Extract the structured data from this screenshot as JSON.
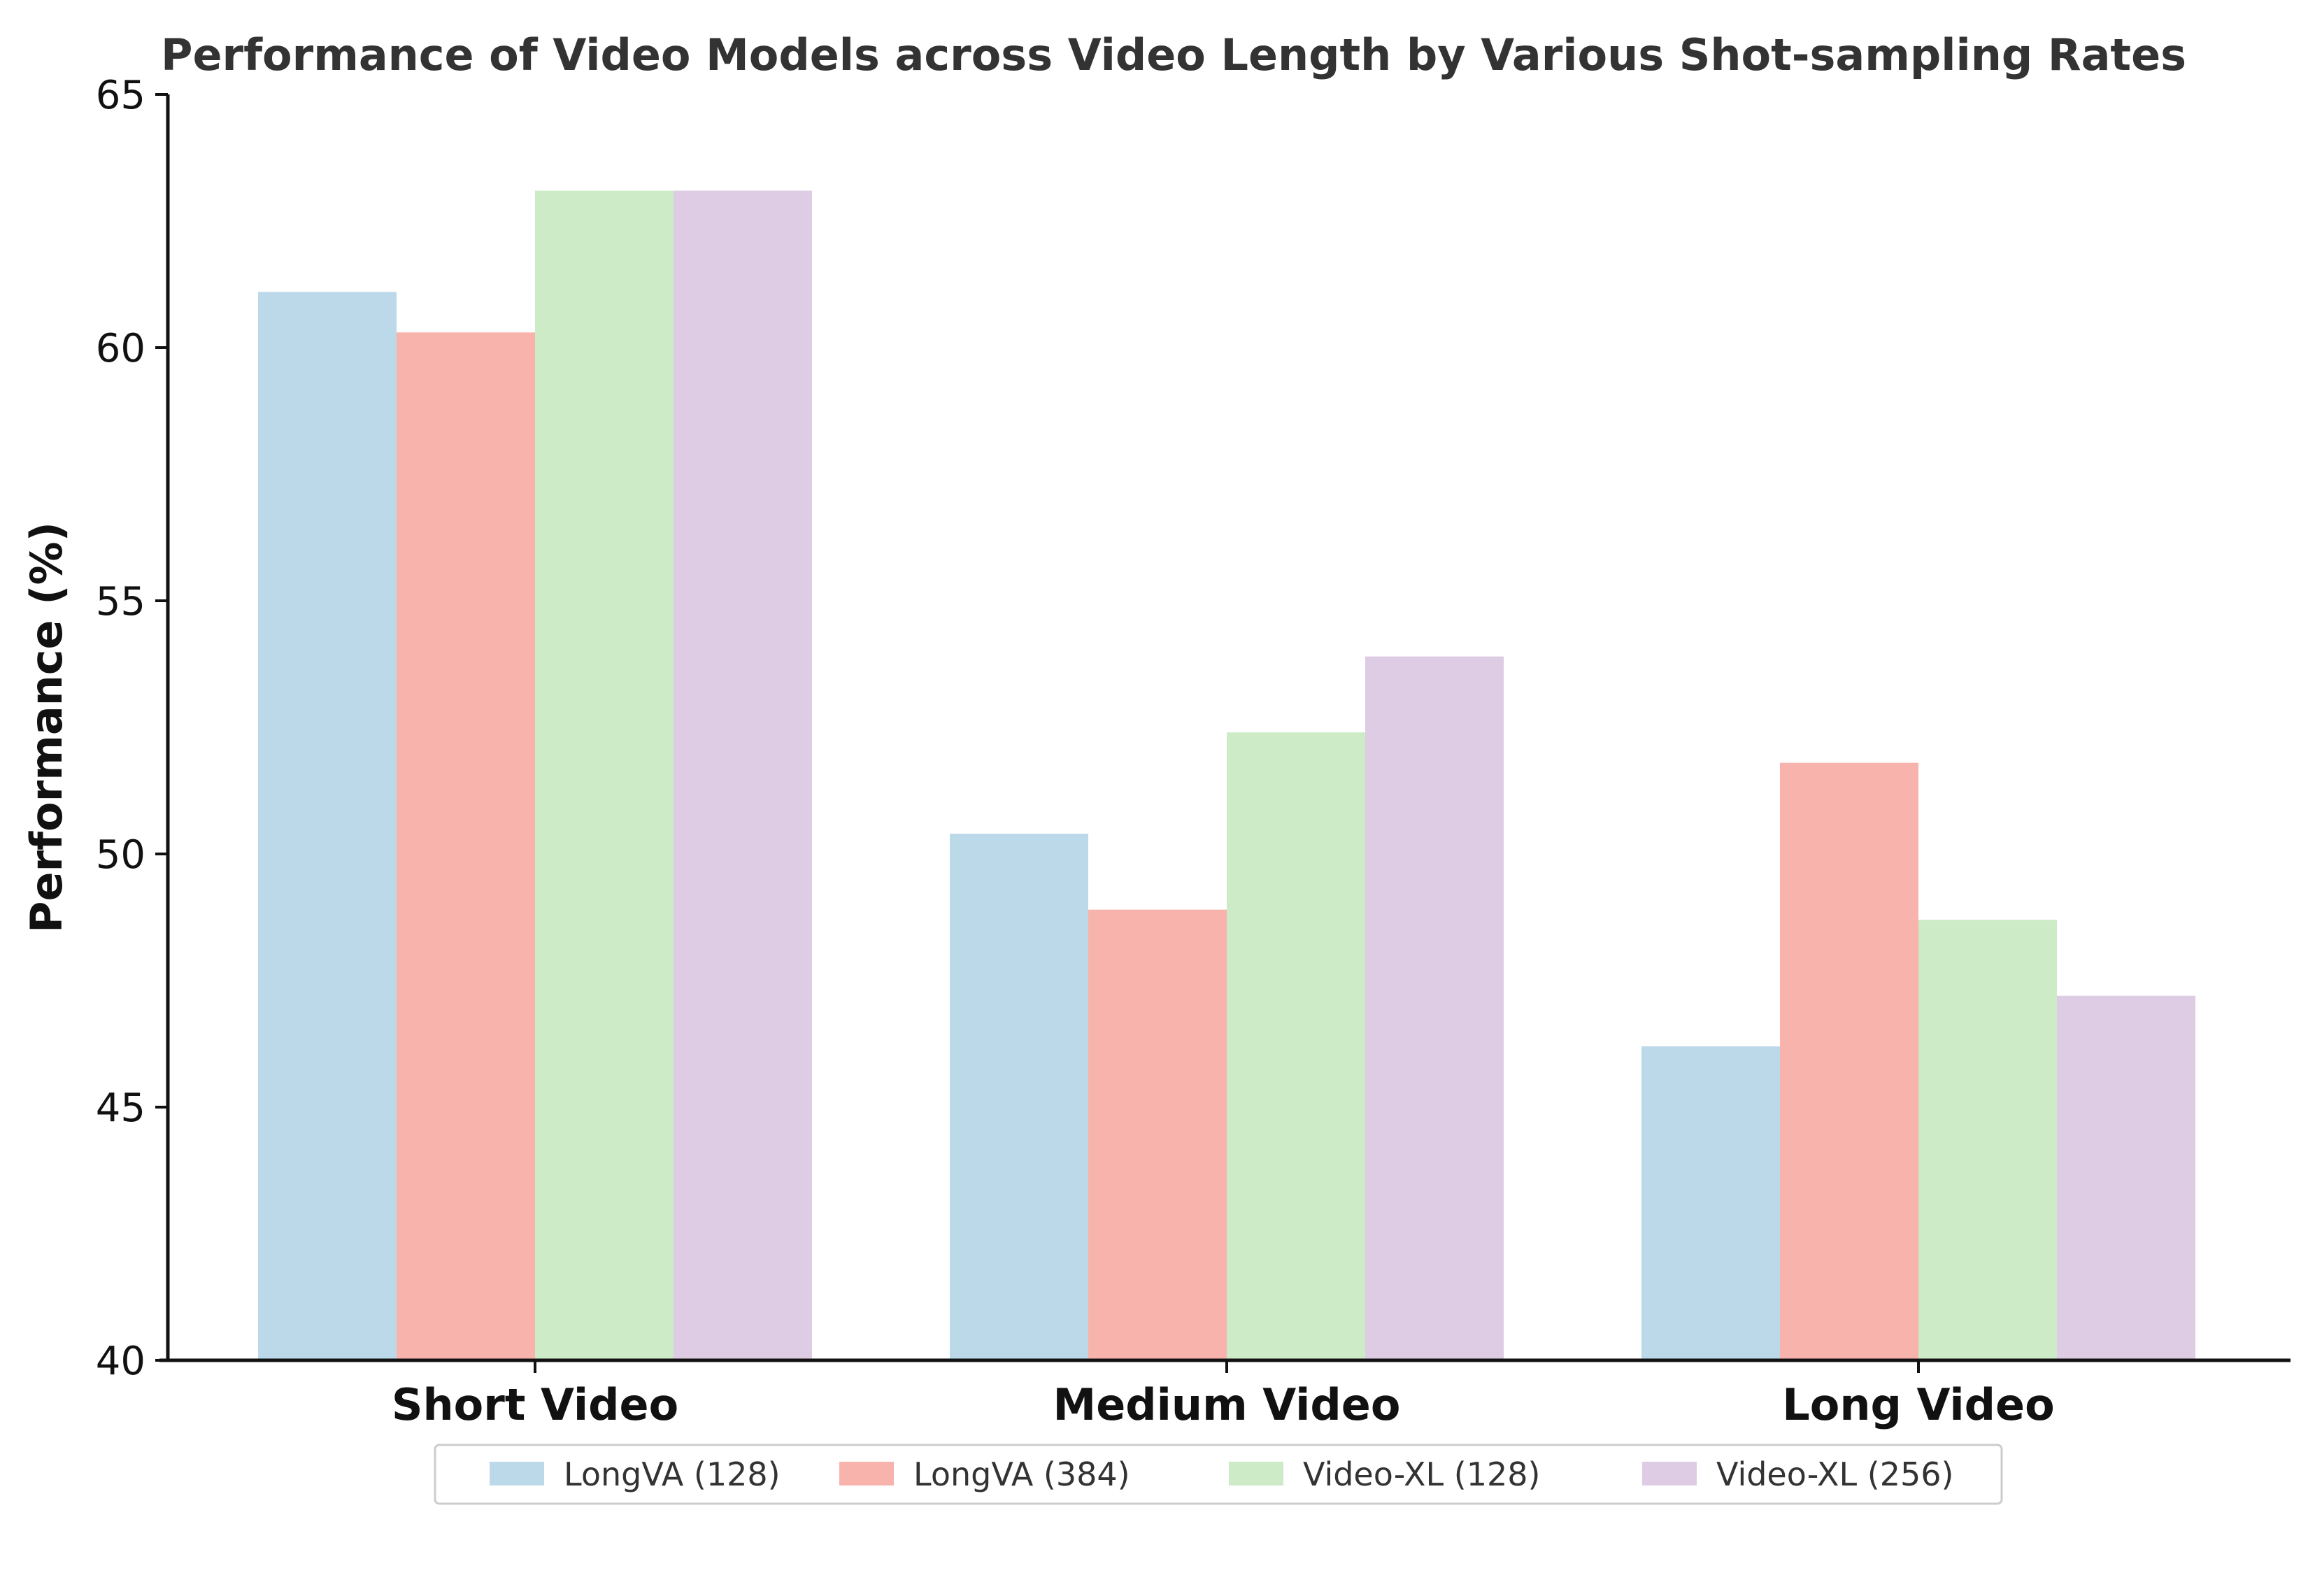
{
  "chart_data": {
    "type": "bar",
    "title": "Performance of Video Models across Video Length by Various Shot-sampling Rates",
    "xlabel": "",
    "ylabel": "Performance (%)",
    "ylim": [
      40,
      65
    ],
    "yticks": [
      "40",
      "45",
      "50",
      "55",
      "60",
      "65"
    ],
    "categories": [
      "Short Video",
      "Medium Video",
      "Long Video"
    ],
    "series": [
      {
        "name": "LongVA (128)",
        "color": "#bcd9ea",
        "values": [
          61.1,
          50.4,
          46.2
        ]
      },
      {
        "name": "LongVA (384)",
        "color": "#f9b3ad",
        "values": [
          60.3,
          48.9,
          51.8
        ]
      },
      {
        "name": "Video-XL (128)",
        "color": "#ccebc6",
        "values": [
          63.1,
          52.4,
          48.7
        ]
      },
      {
        "name": "Video-XL (256)",
        "color": "#decce4",
        "values": [
          63.1,
          53.9,
          47.2
        ]
      }
    ],
    "grid": false,
    "legend_position": "bottom-center"
  }
}
